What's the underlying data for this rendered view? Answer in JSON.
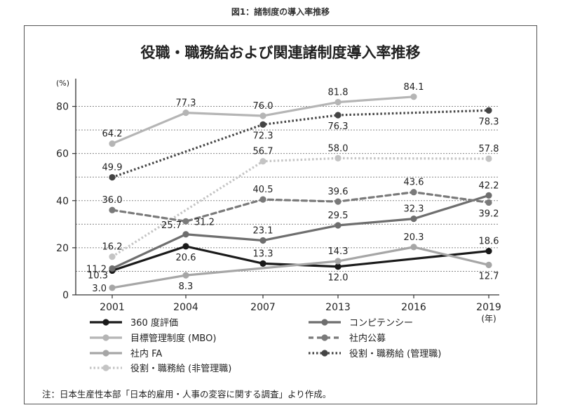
{
  "figure_caption": "図1：諸制度の導入率推移",
  "note": "注：日本生産性本部「日本的雇用・人事の変容に関する調査」より作成。",
  "chart_data": {
    "type": "line",
    "title": "役職・職務給および関連諸制度導入率推移",
    "unit_label": "(%)",
    "x_unit_label": "(年)",
    "x": [
      "2001",
      "2004",
      "2007",
      "2013",
      "2016",
      "2019"
    ],
    "ylim": [
      0,
      90
    ],
    "y_ticks": [
      0,
      20,
      40,
      60,
      80
    ],
    "grid": "dotted horizontal",
    "legend_position": "bottom",
    "series": [
      {
        "name": "360 度評価",
        "color": "#1a1a1a",
        "dash": "solid",
        "marker": true,
        "points": [
          [
            0,
            10.3
          ],
          [
            1,
            20.6
          ],
          [
            2,
            13.3
          ],
          [
            3,
            12.0
          ],
          [
            5,
            18.6
          ]
        ]
      },
      {
        "name": "目標管理制度 (MBO)",
        "color": "#b5b5b5",
        "dash": "solid",
        "marker": true,
        "points": [
          [
            0,
            64.2
          ],
          [
            1,
            77.3
          ],
          [
            2,
            76.0
          ],
          [
            3,
            81.8
          ],
          [
            4,
            84.1
          ]
        ]
      },
      {
        "name": "社内 FA",
        "color": "#a6a6a6",
        "dash": "solid",
        "marker": true,
        "points": [
          [
            0,
            3.0
          ],
          [
            1,
            8.3
          ],
          [
            3,
            14.3
          ],
          [
            4,
            20.3
          ],
          [
            5,
            12.7
          ]
        ]
      },
      {
        "name": "役割・職務給 (非管理職)",
        "color": "#c4c4c4",
        "dash": "dotted",
        "marker": true,
        "points": [
          [
            0,
            16.2
          ],
          [
            2,
            56.7
          ],
          [
            3,
            58.0
          ],
          [
            5,
            57.8
          ]
        ]
      },
      {
        "name": "コンピテンシー",
        "color": "#6e6e6e",
        "dash": "solid",
        "marker": true,
        "points": [
          [
            0,
            11.2
          ],
          [
            1,
            25.7
          ],
          [
            2,
            23.1
          ],
          [
            3,
            29.5
          ],
          [
            4,
            32.3
          ],
          [
            5,
            42.2
          ]
        ]
      },
      {
        "name": "社内公募",
        "color": "#7a7a7a",
        "dash": "dashed",
        "marker": true,
        "points": [
          [
            0,
            36.0
          ],
          [
            1,
            31.2
          ],
          [
            2,
            40.5
          ],
          [
            3,
            39.6
          ],
          [
            4,
            43.6
          ],
          [
            5,
            39.2
          ]
        ]
      },
      {
        "name": "役割・職務給 (管理職)",
        "color": "#444444",
        "dash": "dotted",
        "marker": true,
        "points": [
          [
            0,
            49.9
          ],
          [
            2,
            72.3
          ],
          [
            3,
            76.3
          ],
          [
            5,
            78.3
          ]
        ]
      }
    ],
    "data_labels": [
      {
        "text": "64.2",
        "series": 1,
        "point": 0,
        "pos": "above"
      },
      {
        "text": "77.3",
        "series": 1,
        "point": 1,
        "pos": "above"
      },
      {
        "text": "76.0",
        "series": 1,
        "point": 2,
        "pos": "above"
      },
      {
        "text": "81.8",
        "series": 1,
        "point": 3,
        "pos": "above"
      },
      {
        "text": "84.1",
        "series": 1,
        "point": 4,
        "pos": "above"
      },
      {
        "text": "49.9",
        "series": 6,
        "point": 0,
        "pos": "above"
      },
      {
        "text": "72.3",
        "series": 6,
        "point": 1,
        "pos": "below"
      },
      {
        "text": "76.3",
        "series": 6,
        "point": 2,
        "pos": "below"
      },
      {
        "text": "78.3",
        "series": 6,
        "point": 3,
        "pos": "below"
      },
      {
        "text": "56.7",
        "series": 3,
        "point": 1,
        "pos": "above"
      },
      {
        "text": "58.0",
        "series": 3,
        "point": 2,
        "pos": "above"
      },
      {
        "text": "57.8",
        "series": 3,
        "point": 3,
        "pos": "above"
      },
      {
        "text": "36.0",
        "series": 5,
        "point": 0,
        "pos": "above"
      },
      {
        "text": "31.2",
        "series": 5,
        "point": 1,
        "pos": "right"
      },
      {
        "text": "40.5",
        "series": 5,
        "point": 2,
        "pos": "above"
      },
      {
        "text": "39.6",
        "series": 5,
        "point": 3,
        "pos": "above"
      },
      {
        "text": "43.6",
        "series": 5,
        "point": 4,
        "pos": "above"
      },
      {
        "text": "39.2",
        "series": 5,
        "point": 5,
        "pos": "below"
      },
      {
        "text": "25.7",
        "series": 4,
        "point": 1,
        "pos": "above-left"
      },
      {
        "text": "23.1",
        "series": 4,
        "point": 2,
        "pos": "above"
      },
      {
        "text": "29.5",
        "series": 4,
        "point": 3,
        "pos": "above"
      },
      {
        "text": "32.3",
        "series": 4,
        "point": 4,
        "pos": "above"
      },
      {
        "text": "42.2",
        "series": 4,
        "point": 5,
        "pos": "above"
      },
      {
        "text": "11.2",
        "series": 4,
        "point": 0,
        "pos": "left"
      },
      {
        "text": "16.2",
        "series": 3,
        "point": 0,
        "pos": "above"
      },
      {
        "text": "10.3",
        "series": 0,
        "point": 0,
        "pos": "below-left"
      },
      {
        "text": "20.6",
        "series": 0,
        "point": 1,
        "pos": "below"
      },
      {
        "text": "13.3",
        "series": 0,
        "point": 2,
        "pos": "above"
      },
      {
        "text": "12.0",
        "series": 0,
        "point": 3,
        "pos": "below"
      },
      {
        "text": "18.6",
        "series": 0,
        "point": 4,
        "pos": "above"
      },
      {
        "text": "3.0",
        "series": 2,
        "point": 0,
        "pos": "left"
      },
      {
        "text": "8.3",
        "series": 2,
        "point": 1,
        "pos": "below"
      },
      {
        "text": "14.3",
        "series": 2,
        "point": 2,
        "pos": "above"
      },
      {
        "text": "20.3",
        "series": 2,
        "point": 3,
        "pos": "above"
      },
      {
        "text": "12.7",
        "series": 2,
        "point": 4,
        "pos": "below"
      }
    ]
  }
}
